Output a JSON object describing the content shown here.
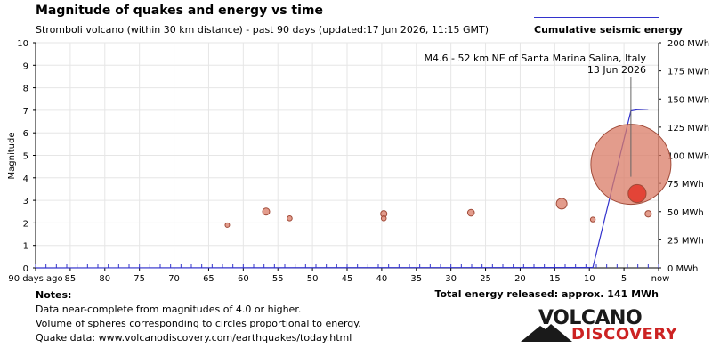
{
  "header": {
    "title": "Magnitude of quakes and energy vs time",
    "subtitle": "Stromboli volcano (within 30 km distance) - past 90 days (updated:17 Jun 2026, 11:15 GMT)"
  },
  "legend": {
    "label": "Cumulative seismic energy",
    "line_color": "#3333cc"
  },
  "annotation": {
    "line1": "M4.6 - 52 km NE of Santa Marina Salina, Italy",
    "line2": "13 Jun 2026"
  },
  "notes": {
    "title": "Notes:",
    "lines": [
      "Data near-complete from magnitudes of 4.0 or higher.",
      "Volume of spheres corresponding to circles proportional to energy.",
      "Quake data: www.volcanodiscovery.com/earthquakes/today.html"
    ]
  },
  "total_energy": "Total energy released: approx. 141 MWh",
  "logo": {
    "word1": "VOLCANO",
    "word2": "DISCOVERY"
  },
  "chart_data": {
    "type": "scatter",
    "x_axis": {
      "unit": "days ago",
      "range": [
        90,
        0
      ],
      "tick_labels": [
        "90 days ago",
        "85",
        "80",
        "75",
        "70",
        "65",
        "60",
        "55",
        "50",
        "45",
        "40",
        "35",
        "30",
        "25",
        "20",
        "15",
        "10",
        "5",
        "now"
      ]
    },
    "y_axis_left": {
      "label": "Magnitude",
      "range": [
        0,
        10
      ],
      "tick_labels": [
        "0",
        "1",
        "2",
        "3",
        "4",
        "5",
        "6",
        "7",
        "8",
        "9",
        "10"
      ]
    },
    "y_axis_right": {
      "range": [
        0,
        200
      ],
      "unit": "MWh",
      "tick_labels": [
        "0 MWh",
        "25 MWh",
        "50 MWh",
        "75 MWh",
        "100 MWh",
        "125 MWh",
        "150 MWh",
        "175 MWh",
        "200 MWh"
      ]
    },
    "grid": true,
    "colors": {
      "quake_fill": "#d97b66",
      "quake_stroke": "#a04a38",
      "highlight_fill": "#e23b2e",
      "energy_line": "#3333cc",
      "grid": "#e6e6e6"
    },
    "quakes": [
      {
        "days_ago": 62.3,
        "magnitude": 1.9
      },
      {
        "days_ago": 56.7,
        "magnitude": 2.5
      },
      {
        "days_ago": 53.3,
        "magnitude": 2.2
      },
      {
        "days_ago": 39.7,
        "magnitude": 2.4
      },
      {
        "days_ago": 39.7,
        "magnitude": 2.2
      },
      {
        "days_ago": 27.1,
        "magnitude": 2.45
      },
      {
        "days_ago": 14.0,
        "magnitude": 2.85
      },
      {
        "days_ago": 9.5,
        "magnitude": 2.15
      },
      {
        "days_ago": 4.0,
        "magnitude": 4.6
      },
      {
        "days_ago": 3.1,
        "magnitude": 3.3
      },
      {
        "days_ago": 1.5,
        "magnitude": 2.4
      }
    ],
    "highlighted_quake": {
      "days_ago": 3.1,
      "magnitude": 3.3
    },
    "cumulative_energy": {
      "name": "Cumulative seismic energy",
      "points": [
        {
          "days_ago": 90,
          "mwh": 0
        },
        {
          "days_ago": 9.5,
          "mwh": 0.3
        },
        {
          "days_ago": 4.0,
          "mwh": 139.5
        },
        {
          "days_ago": 3.1,
          "mwh": 140.5
        },
        {
          "days_ago": 1.5,
          "mwh": 141
        }
      ]
    }
  }
}
